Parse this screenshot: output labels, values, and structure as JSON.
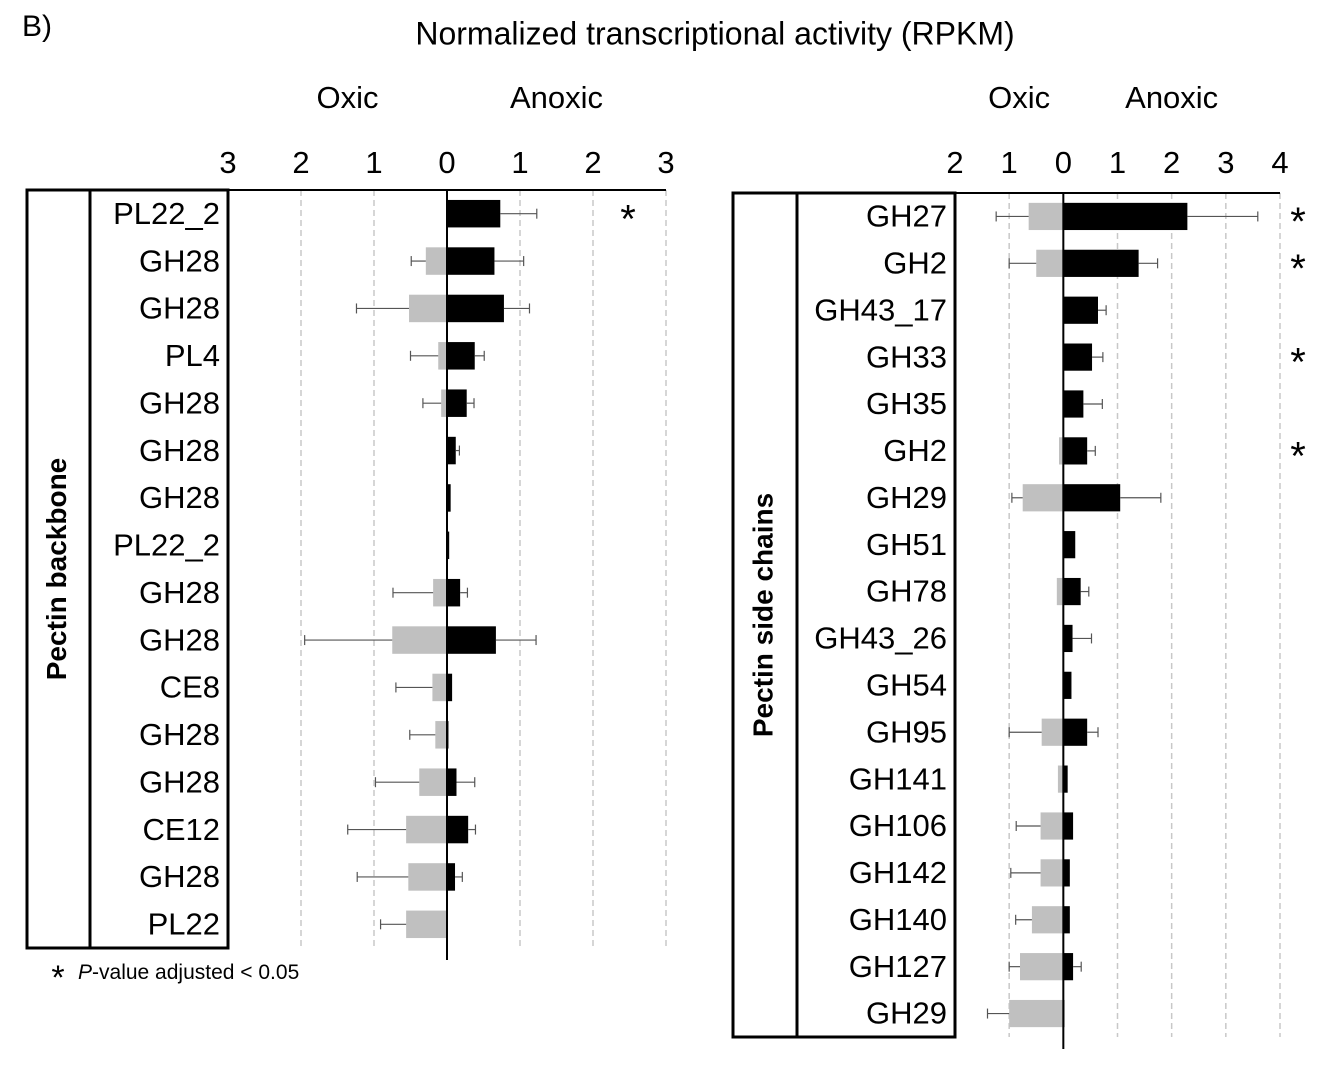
{
  "panel_label": "B)",
  "title": "Normalized transcriptional activity (RPKM)",
  "footnote_symbol": "*",
  "footnote_italic": "P",
  "footnote_text": "-value adjusted < 0.05",
  "chart_data": [
    {
      "type": "diverging-bar",
      "group_label": "Pectin backbone",
      "categories": [
        "PL22_2",
        "GH28",
        "GH28",
        "PL4",
        "GH28",
        "GH28",
        "GH28",
        "PL22_2",
        "GH28",
        "GH28",
        "CE8",
        "GH28",
        "GH28",
        "CE12",
        "GH28",
        "PL22"
      ],
      "series": [
        {
          "name": "Oxic",
          "color": "#c0c0c0",
          "values": [
            0,
            -0.29,
            -0.52,
            -0.12,
            -0.08,
            0,
            0,
            0,
            -0.19,
            -0.75,
            -0.2,
            -0.16,
            -0.38,
            -0.56,
            -0.53,
            -0.56
          ],
          "errors": [
            null,
            0.2,
            0.72,
            0.38,
            0.25,
            null,
            null,
            null,
            0.55,
            1.2,
            0.5,
            0.35,
            0.6,
            0.8,
            0.7,
            0.35
          ]
        },
        {
          "name": "Anoxic",
          "color": "#000000",
          "values": [
            0.73,
            0.65,
            0.78,
            0.38,
            0.27,
            0.12,
            0.05,
            0.03,
            0.18,
            0.67,
            0.07,
            0.02,
            0.13,
            0.29,
            0.11,
            0.01
          ],
          "errors": [
            0.5,
            0.4,
            0.35,
            0.13,
            0.1,
            0.05,
            null,
            null,
            0.1,
            0.55,
            null,
            null,
            0.25,
            0.1,
            0.1,
            null
          ]
        }
      ],
      "significance_label": "*",
      "significant": [
        0
      ],
      "xlim": [
        -3,
        3
      ],
      "xticks": [
        {
          "value": -3,
          "label": "3"
        },
        {
          "value": -2,
          "label": "2"
        },
        {
          "value": -1,
          "label": "1"
        },
        0,
        1,
        2,
        3
      ],
      "grid": true
    },
    {
      "type": "diverging-bar",
      "group_label": "Pectin side chains",
      "categories": [
        "GH27",
        "GH2",
        "GH43_17",
        "GH33",
        "GH35",
        "GH2",
        "GH29",
        "GH51",
        "GH78",
        "GH43_26",
        "GH54",
        "GH95",
        "GH141",
        "GH106",
        "GH142",
        "GH140",
        "GH127",
        "GH29"
      ],
      "series": [
        {
          "name": "Oxic",
          "color": "#c0c0c0",
          "values": [
            -0.64,
            -0.5,
            0,
            0,
            0,
            -0.08,
            -0.75,
            0,
            -0.12,
            0,
            0,
            -0.4,
            -0.1,
            -0.42,
            -0.42,
            -0.58,
            -0.8,
            -1.0
          ],
          "errors": [
            0.6,
            0.5,
            null,
            null,
            null,
            null,
            0.2,
            null,
            null,
            null,
            null,
            0.6,
            null,
            0.45,
            0.55,
            0.3,
            0.2,
            0.4
          ]
        },
        {
          "name": "Anoxic",
          "color": "#000000",
          "values": [
            2.29,
            1.39,
            0.64,
            0.53,
            0.37,
            0.44,
            1.05,
            0.22,
            0.32,
            0.17,
            0.15,
            0.44,
            0.08,
            0.18,
            0.12,
            0.12,
            0.18,
            0.02
          ],
          "errors": [
            1.3,
            0.35,
            0.15,
            0.2,
            0.35,
            0.15,
            0.75,
            null,
            0.15,
            0.35,
            null,
            0.2,
            null,
            null,
            null,
            null,
            0.15,
            null
          ]
        }
      ],
      "significance_label": "*",
      "significant": [
        0,
        1,
        3,
        5
      ],
      "xlim": [
        -2,
        4
      ],
      "xticks": [
        {
          "value": -2,
          "label": "2"
        },
        {
          "value": -1,
          "label": "1"
        },
        0,
        1,
        2,
        3,
        4
      ],
      "grid": true
    }
  ]
}
